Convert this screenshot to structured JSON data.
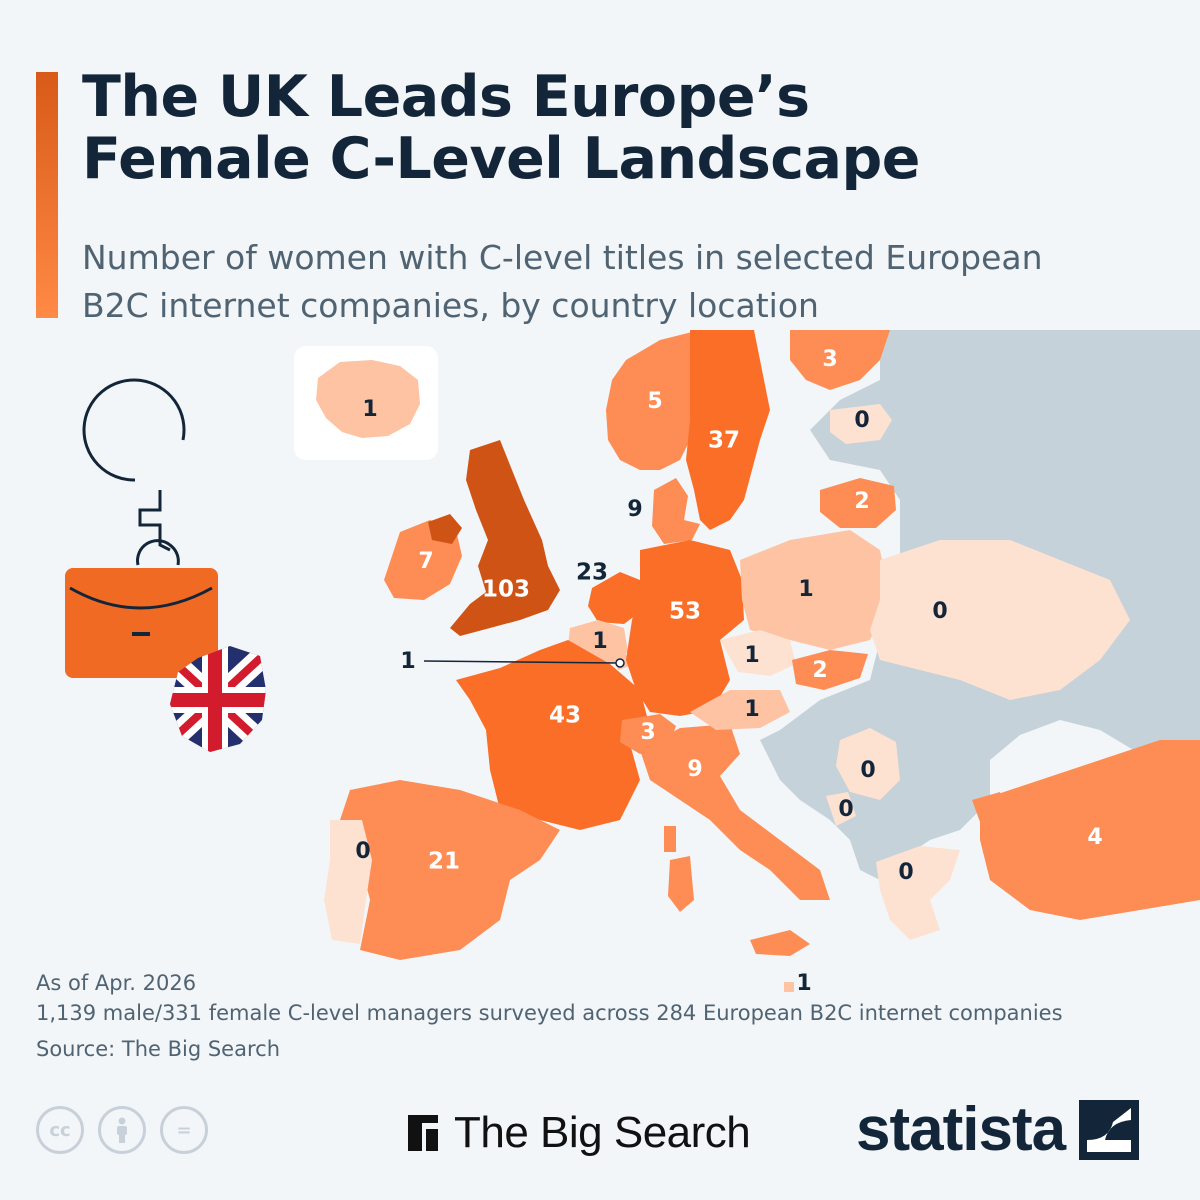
{
  "header": {
    "title_line1": "The UK Leads Europe’s",
    "title_line2": "Female C-Level Landscape",
    "subtitle_line1": "Number of women with C-level titles in selected European",
    "subtitle_line2": "B2C internet companies, by country location"
  },
  "colors": {
    "accent": "#e05a1a",
    "title": "#132539",
    "subtitle": "#4f6372",
    "shade_top": "#cf5315",
    "shade_high": "#fa6e28",
    "shade_mid": "#fd8d55",
    "shade_low": "#fdc3a2",
    "shade_zero": "#fde2d2",
    "no_data": "#c6d2da"
  },
  "map": {
    "countries": [
      {
        "name": "United Kingdom",
        "value": 103
      },
      {
        "name": "Germany",
        "value": 53
      },
      {
        "name": "France",
        "value": 43
      },
      {
        "name": "Sweden",
        "value": 37
      },
      {
        "name": "Netherlands",
        "value": 23
      },
      {
        "name": "Spain",
        "value": 21
      },
      {
        "name": "Ireland",
        "value": 7
      },
      {
        "name": "Norway",
        "value": 5
      },
      {
        "name": "Denmark",
        "value": 9
      },
      {
        "name": "Italy",
        "value": 9
      },
      {
        "name": "Turkey",
        "value": 4
      },
      {
        "name": "Finland",
        "value": 3
      },
      {
        "name": "Switzerland",
        "value": 3
      },
      {
        "name": "Lithuania",
        "value": 2
      },
      {
        "name": "Slovakia",
        "value": 2
      },
      {
        "name": "Iceland",
        "value": 1
      },
      {
        "name": "Poland",
        "value": 1
      },
      {
        "name": "Belgium",
        "value": 1
      },
      {
        "name": "Luxembourg",
        "value": 1
      },
      {
        "name": "Czechia",
        "value": 1
      },
      {
        "name": "Austria",
        "value": 1
      },
      {
        "name": "Malta",
        "value": 1
      },
      {
        "name": "Estonia",
        "value": 0
      },
      {
        "name": "Ukraine",
        "value": 0
      },
      {
        "name": "Serbia",
        "value": 0
      },
      {
        "name": "Montenegro",
        "value": 0
      },
      {
        "name": "Greece",
        "value": 0
      },
      {
        "name": "Portugal",
        "value": 0
      }
    ]
  },
  "footer": {
    "as_of": "As of Apr. 2026",
    "note": "1,139 male/331 female C-level managers surveyed across 284 European B2C internet companies",
    "source": "Source: The Big Search",
    "license_icons": [
      "cc-icon",
      "attribution-icon",
      "no-derivatives-icon"
    ],
    "license_cc": "cc",
    "license_eq": "=",
    "brand1": "The Big Search",
    "brand2": "statista"
  }
}
